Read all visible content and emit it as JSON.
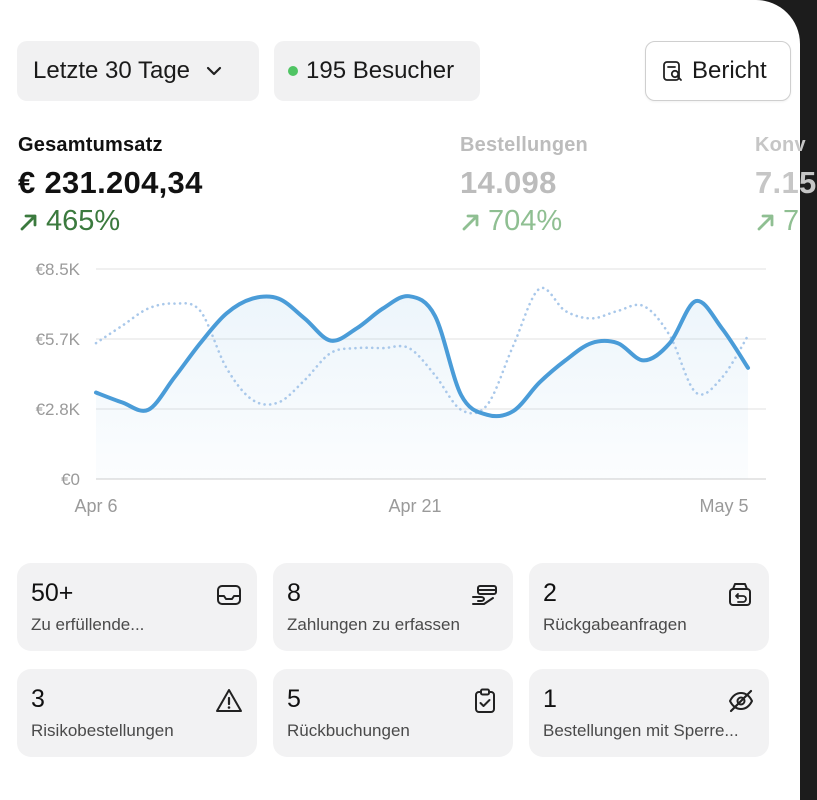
{
  "toolbar": {
    "period_label": "Letzte 30 Tage",
    "visitors_label": "195 Besucher",
    "visitors_dot_color": "#4fc463",
    "report_label": "Bericht"
  },
  "metrics": [
    {
      "label": "Gesamtumsatz",
      "value": "€ 231.204,34",
      "change": "465%"
    },
    {
      "label": "Bestellungen",
      "value": "14.098",
      "change": "704%"
    },
    {
      "label": "Konv",
      "value": "7.15",
      "change": "7"
    }
  ],
  "chart_data": {
    "type": "line",
    "title": "",
    "y_ticks": [
      "€8.5K",
      "€5.7K",
      "€2.8K",
      "€0"
    ],
    "x_ticks": [
      "Apr 6",
      "Apr 21",
      "May 5"
    ],
    "ylim": [
      0,
      8500
    ],
    "grid": true,
    "series": [
      {
        "style": "solid",
        "color": "#4a9cd8",
        "values": [
          3500,
          3100,
          2800,
          4100,
          5500,
          6700,
          7300,
          7300,
          6500,
          5600,
          6100,
          6900,
          7400,
          6600,
          3400,
          2600,
          2750,
          3900,
          4800,
          5500,
          5500,
          4800,
          5500,
          7200,
          6100,
          4500
        ]
      },
      {
        "style": "dotted",
        "color": "#a9c8ea",
        "values": [
          5500,
          6200,
          6900,
          7100,
          6800,
          4500,
          3200,
          3100,
          4000,
          5100,
          5300,
          5300,
          5300,
          4200,
          2800,
          3000,
          5400,
          7700,
          6800,
          6500,
          6800,
          7000,
          5800,
          3500,
          4100,
          5800
        ]
      }
    ]
  },
  "tiles": [
    {
      "count": "50+",
      "label": "Zu erfüllende...",
      "icon": "inbox-icon"
    },
    {
      "count": "8",
      "label": "Zahlungen zu erfassen",
      "icon": "hand-card-icon"
    },
    {
      "count": "2",
      "label": "Rückgabeanfragen",
      "icon": "return-box-icon"
    },
    {
      "count": "3",
      "label": "Risikobestellungen",
      "icon": "warning-icon"
    },
    {
      "count": "5",
      "label": "Rückbuchungen",
      "icon": "clipboard-check-icon"
    },
    {
      "count": "1",
      "label": "Bestellungen mit Sperre...",
      "icon": "eye-off-icon"
    }
  ]
}
